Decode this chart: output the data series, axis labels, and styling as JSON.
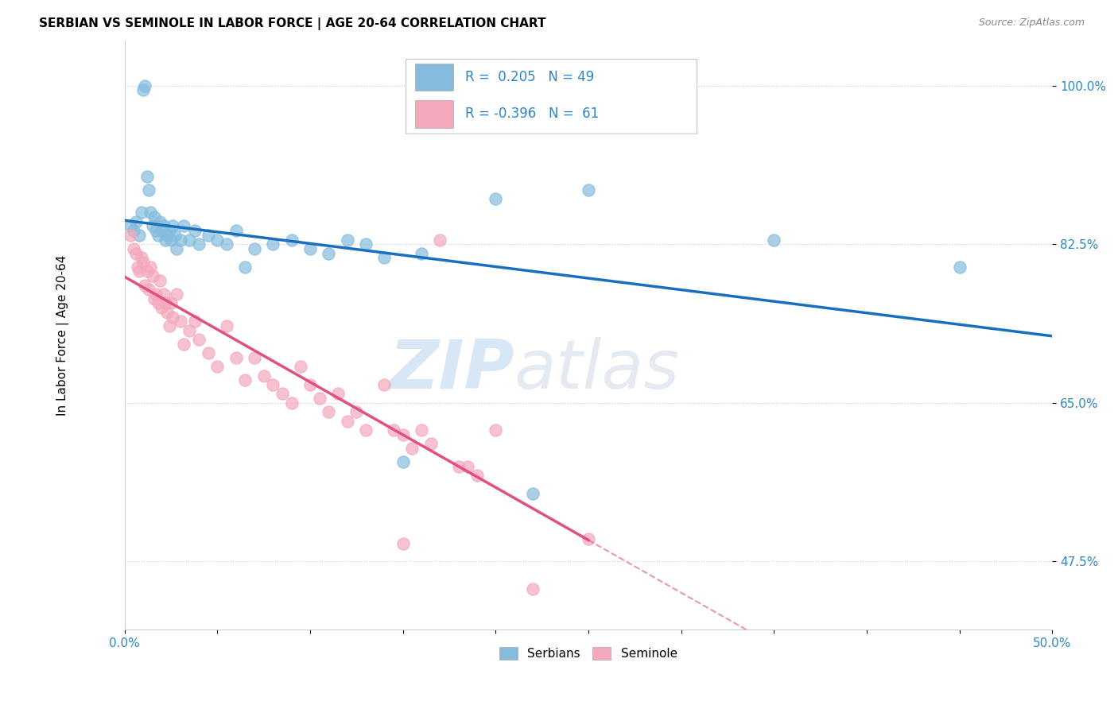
{
  "title": "SERBIAN VS SEMINOLE IN LABOR FORCE | AGE 20-64 CORRELATION CHART",
  "source": "Source: ZipAtlas.com",
  "ylabel": "In Labor Force | Age 20-64",
  "yticks": [
    47.5,
    65.0,
    82.5,
    100.0
  ],
  "ytick_labels": [
    "47.5%",
    "65.0%",
    "82.5%",
    "100.0%"
  ],
  "xlim": [
    0.0,
    50.0
  ],
  "ylim": [
    40.0,
    105.0
  ],
  "serbian_color": "#85bcde",
  "seminole_color": "#f4a8bc",
  "trendline_serbian_color": "#1a6fbd",
  "trendline_seminole_color": "#e05080",
  "watermark_zip": "ZIP",
  "watermark_atlas": "atlas",
  "serbian_points": [
    [
      0.3,
      84.5
    ],
    [
      0.5,
      84.0
    ],
    [
      0.6,
      85.0
    ],
    [
      0.8,
      83.5
    ],
    [
      0.9,
      86.0
    ],
    [
      1.0,
      99.5
    ],
    [
      1.1,
      100.0
    ],
    [
      1.2,
      90.0
    ],
    [
      1.3,
      88.5
    ],
    [
      1.4,
      86.0
    ],
    [
      1.5,
      84.5
    ],
    [
      1.6,
      85.5
    ],
    [
      1.7,
      84.0
    ],
    [
      1.8,
      83.5
    ],
    [
      1.9,
      85.0
    ],
    [
      2.0,
      84.0
    ],
    [
      2.1,
      84.5
    ],
    [
      2.2,
      83.0
    ],
    [
      2.3,
      83.5
    ],
    [
      2.4,
      84.0
    ],
    [
      2.5,
      83.0
    ],
    [
      2.6,
      84.5
    ],
    [
      2.7,
      83.5
    ],
    [
      2.8,
      82.0
    ],
    [
      3.0,
      83.0
    ],
    [
      3.2,
      84.5
    ],
    [
      3.5,
      83.0
    ],
    [
      3.8,
      84.0
    ],
    [
      4.0,
      82.5
    ],
    [
      4.5,
      83.5
    ],
    [
      5.0,
      83.0
    ],
    [
      5.5,
      82.5
    ],
    [
      6.0,
      84.0
    ],
    [
      6.5,
      80.0
    ],
    [
      7.0,
      82.0
    ],
    [
      8.0,
      82.5
    ],
    [
      9.0,
      83.0
    ],
    [
      10.0,
      82.0
    ],
    [
      11.0,
      81.5
    ],
    [
      12.0,
      83.0
    ],
    [
      13.0,
      82.5
    ],
    [
      14.0,
      81.0
    ],
    [
      15.0,
      58.5
    ],
    [
      16.0,
      81.5
    ],
    [
      20.0,
      87.5
    ],
    [
      22.0,
      55.0
    ],
    [
      25.0,
      88.5
    ],
    [
      35.0,
      83.0
    ],
    [
      45.0,
      80.0
    ]
  ],
  "seminole_points": [
    [
      0.3,
      83.5
    ],
    [
      0.5,
      82.0
    ],
    [
      0.6,
      81.5
    ],
    [
      0.7,
      80.0
    ],
    [
      0.8,
      79.5
    ],
    [
      0.9,
      81.0
    ],
    [
      1.0,
      80.5
    ],
    [
      1.1,
      78.0
    ],
    [
      1.2,
      79.5
    ],
    [
      1.3,
      77.5
    ],
    [
      1.4,
      80.0
    ],
    [
      1.5,
      79.0
    ],
    [
      1.6,
      76.5
    ],
    [
      1.7,
      77.0
    ],
    [
      1.8,
      76.0
    ],
    [
      1.9,
      78.5
    ],
    [
      2.0,
      75.5
    ],
    [
      2.1,
      77.0
    ],
    [
      2.2,
      76.0
    ],
    [
      2.3,
      75.0
    ],
    [
      2.4,
      73.5
    ],
    [
      2.5,
      76.0
    ],
    [
      2.6,
      74.5
    ],
    [
      2.8,
      77.0
    ],
    [
      3.0,
      74.0
    ],
    [
      3.2,
      71.5
    ],
    [
      3.5,
      73.0
    ],
    [
      3.8,
      74.0
    ],
    [
      4.0,
      72.0
    ],
    [
      4.5,
      70.5
    ],
    [
      5.0,
      69.0
    ],
    [
      5.5,
      73.5
    ],
    [
      6.0,
      70.0
    ],
    [
      6.5,
      67.5
    ],
    [
      7.0,
      70.0
    ],
    [
      7.5,
      68.0
    ],
    [
      8.0,
      67.0
    ],
    [
      8.5,
      66.0
    ],
    [
      9.0,
      65.0
    ],
    [
      9.5,
      69.0
    ],
    [
      10.0,
      67.0
    ],
    [
      10.5,
      65.5
    ],
    [
      11.0,
      64.0
    ],
    [
      11.5,
      66.0
    ],
    [
      12.0,
      63.0
    ],
    [
      12.5,
      64.0
    ],
    [
      13.0,
      62.0
    ],
    [
      14.0,
      67.0
    ],
    [
      14.5,
      62.0
    ],
    [
      15.0,
      61.5
    ],
    [
      15.5,
      60.0
    ],
    [
      16.0,
      62.0
    ],
    [
      16.5,
      60.5
    ],
    [
      17.0,
      83.0
    ],
    [
      18.0,
      58.0
    ],
    [
      18.5,
      58.0
    ],
    [
      19.0,
      57.0
    ],
    [
      20.0,
      62.0
    ],
    [
      22.0,
      44.5
    ],
    [
      25.0,
      50.0
    ],
    [
      15.0,
      49.5
    ]
  ]
}
